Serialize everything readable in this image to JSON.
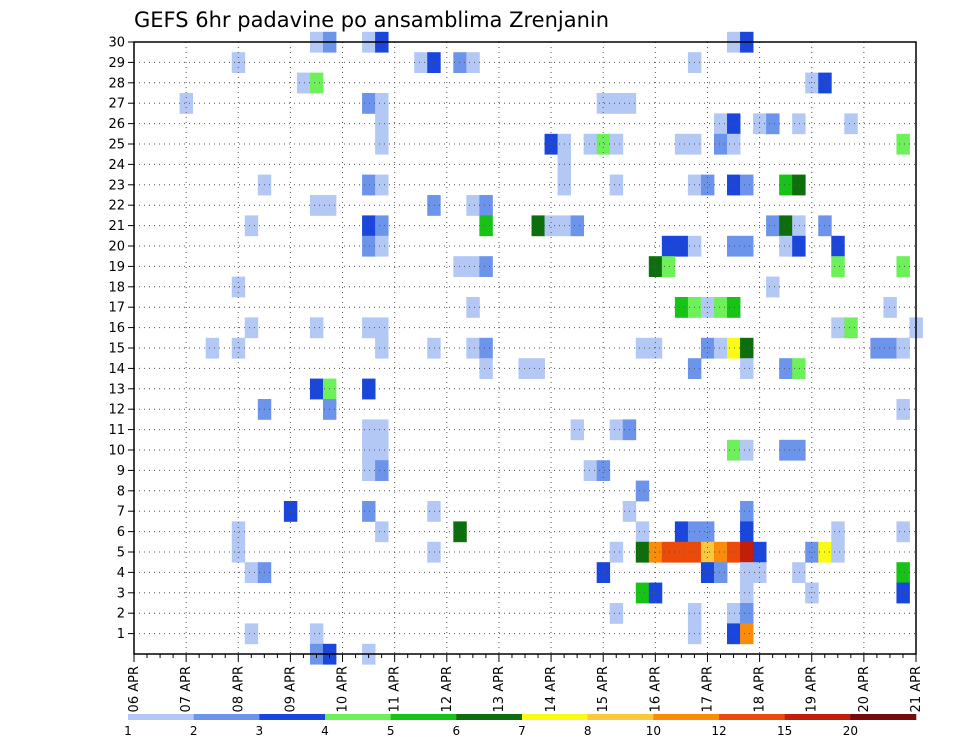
{
  "chart_data": {
    "type": "heatmap",
    "title": "GEFS 6hr padavine po ansamblima Zrenjanin",
    "x_tick_labels": [
      "06 APR",
      "07 APR",
      "08 APR",
      "09 APR",
      "10 APR",
      "11 APR",
      "12 APR",
      "13 APR",
      "14 APR",
      "15 APR",
      "16 APR",
      "17 APR",
      "18 APR",
      "19 APR",
      "20 APR",
      "21 APR"
    ],
    "y_tick_labels": [
      "1",
      "2",
      "3",
      "4",
      "5",
      "6",
      "7",
      "8",
      "9",
      "10",
      "11",
      "12",
      "13",
      "14",
      "15",
      "16",
      "17",
      "18",
      "19",
      "20",
      "21",
      "22",
      "23",
      "24",
      "25",
      "26",
      "27",
      "28",
      "29",
      "30"
    ],
    "x_range_steps": [
      0,
      60
    ],
    "y_range_members": [
      0,
      30
    ],
    "grid": "dotted",
    "colorbar": {
      "tick_labels": [
        "1",
        "2",
        "3",
        "4",
        "5",
        "6",
        "7",
        "8",
        "10",
        "12",
        "15",
        "20"
      ],
      "colors": [
        "#b4c8f5",
        "#6c94eb",
        "#1a46dc",
        "#6ef05a",
        "#16c316",
        "#0c6e0c",
        "#fafa14",
        "#fac83c",
        "#fa8c0a",
        "#eb4b0a",
        "#c31e0a",
        "#780a0a"
      ]
    },
    "cells": [
      [
        14,
        30,
        1
      ],
      [
        15,
        30,
        2
      ],
      [
        18,
        30,
        1
      ],
      [
        19,
        30,
        3
      ],
      [
        46,
        30,
        1
      ],
      [
        47,
        30,
        3
      ],
      [
        8,
        29,
        1
      ],
      [
        22,
        29,
        1
      ],
      [
        23,
        29,
        3
      ],
      [
        25,
        29,
        2
      ],
      [
        26,
        29,
        1
      ],
      [
        43,
        29,
        1
      ],
      [
        13,
        28,
        1
      ],
      [
        14,
        28,
        4
      ],
      [
        52,
        28,
        1
      ],
      [
        53,
        28,
        3
      ],
      [
        4,
        27,
        1
      ],
      [
        18,
        27,
        2
      ],
      [
        19,
        27,
        1
      ],
      [
        36,
        27,
        1
      ],
      [
        37,
        27,
        1
      ],
      [
        38,
        27,
        1
      ],
      [
        19,
        26,
        1
      ],
      [
        45,
        26,
        1
      ],
      [
        46,
        26,
        3
      ],
      [
        48,
        26,
        1
      ],
      [
        49,
        26,
        2
      ],
      [
        51,
        26,
        1
      ],
      [
        55,
        26,
        1
      ],
      [
        19,
        25,
        1
      ],
      [
        32,
        25,
        3
      ],
      [
        33,
        25,
        1
      ],
      [
        35,
        25,
        1
      ],
      [
        36,
        25,
        4
      ],
      [
        37,
        25,
        1
      ],
      [
        42,
        25,
        1
      ],
      [
        43,
        25,
        1
      ],
      [
        45,
        25,
        2
      ],
      [
        46,
        25,
        1
      ],
      [
        59,
        25,
        4
      ],
      [
        33,
        24,
        1
      ],
      [
        10,
        23,
        1
      ],
      [
        18,
        23,
        2
      ],
      [
        19,
        23,
        1
      ],
      [
        33,
        23,
        1
      ],
      [
        37,
        23,
        1
      ],
      [
        43,
        23,
        1
      ],
      [
        44,
        23,
        2
      ],
      [
        46,
        23,
        3
      ],
      [
        47,
        23,
        2
      ],
      [
        50,
        23,
        5
      ],
      [
        51,
        23,
        6
      ],
      [
        14,
        22,
        1
      ],
      [
        15,
        22,
        1
      ],
      [
        23,
        22,
        2
      ],
      [
        26,
        22,
        1
      ],
      [
        27,
        22,
        2
      ],
      [
        9,
        21,
        1
      ],
      [
        18,
        21,
        3
      ],
      [
        19,
        21,
        2
      ],
      [
        27,
        21,
        5
      ],
      [
        31,
        21,
        6
      ],
      [
        32,
        21,
        1
      ],
      [
        33,
        21,
        1
      ],
      [
        34,
        21,
        2
      ],
      [
        49,
        21,
        2
      ],
      [
        50,
        21,
        6
      ],
      [
        51,
        21,
        1
      ],
      [
        53,
        21,
        2
      ],
      [
        18,
        20,
        2
      ],
      [
        19,
        20,
        1
      ],
      [
        41,
        20,
        3
      ],
      [
        42,
        20,
        3
      ],
      [
        43,
        20,
        1
      ],
      [
        46,
        20,
        2
      ],
      [
        47,
        20,
        2
      ],
      [
        50,
        20,
        1
      ],
      [
        51,
        20,
        3
      ],
      [
        54,
        20,
        3
      ],
      [
        25,
        19,
        1
      ],
      [
        26,
        19,
        1
      ],
      [
        27,
        19,
        2
      ],
      [
        40,
        19,
        6
      ],
      [
        41,
        19,
        4
      ],
      [
        54,
        19,
        4
      ],
      [
        59,
        19,
        4
      ],
      [
        8,
        18,
        1
      ],
      [
        49,
        18,
        1
      ],
      [
        26,
        17,
        1
      ],
      [
        42,
        17,
        5
      ],
      [
        43,
        17,
        4
      ],
      [
        44,
        17,
        1
      ],
      [
        45,
        17,
        4
      ],
      [
        46,
        17,
        5
      ],
      [
        58,
        17,
        1
      ],
      [
        9,
        16,
        1
      ],
      [
        14,
        16,
        1
      ],
      [
        18,
        16,
        1
      ],
      [
        19,
        16,
        1
      ],
      [
        54,
        16,
        1
      ],
      [
        55,
        16,
        4
      ],
      [
        60,
        16,
        1
      ],
      [
        6,
        15,
        1
      ],
      [
        8,
        15,
        1
      ],
      [
        19,
        15,
        1
      ],
      [
        23,
        15,
        1
      ],
      [
        26,
        15,
        1
      ],
      [
        27,
        15,
        2
      ],
      [
        39,
        15,
        1
      ],
      [
        40,
        15,
        1
      ],
      [
        44,
        15,
        2
      ],
      [
        45,
        15,
        1
      ],
      [
        46,
        15,
        7
      ],
      [
        47,
        15,
        6
      ],
      [
        57,
        15,
        2
      ],
      [
        58,
        15,
        2
      ],
      [
        59,
        15,
        1
      ],
      [
        27,
        14,
        1
      ],
      [
        30,
        14,
        1
      ],
      [
        31,
        14,
        1
      ],
      [
        43,
        14,
        2
      ],
      [
        47,
        14,
        1
      ],
      [
        50,
        14,
        2
      ],
      [
        51,
        14,
        4
      ],
      [
        14,
        13,
        3
      ],
      [
        15,
        13,
        4
      ],
      [
        18,
        13,
        3
      ],
      [
        10,
        12,
        2
      ],
      [
        15,
        12,
        2
      ],
      [
        59,
        12,
        1
      ],
      [
        18,
        11,
        1
      ],
      [
        19,
        11,
        1
      ],
      [
        34,
        11,
        1
      ],
      [
        37,
        11,
        1
      ],
      [
        38,
        11,
        2
      ],
      [
        18,
        10,
        1
      ],
      [
        19,
        10,
        1
      ],
      [
        46,
        10,
        4
      ],
      [
        47,
        10,
        1
      ],
      [
        50,
        10,
        2
      ],
      [
        51,
        10,
        2
      ],
      [
        18,
        9,
        1
      ],
      [
        19,
        9,
        2
      ],
      [
        35,
        9,
        1
      ],
      [
        36,
        9,
        2
      ],
      [
        39,
        8,
        2
      ],
      [
        12,
        7,
        3
      ],
      [
        18,
        7,
        2
      ],
      [
        23,
        7,
        1
      ],
      [
        38,
        7,
        1
      ],
      [
        47,
        7,
        2
      ],
      [
        8,
        6,
        1
      ],
      [
        19,
        6,
        1
      ],
      [
        25,
        6,
        6
      ],
      [
        39,
        6,
        1
      ],
      [
        42,
        6,
        3
      ],
      [
        43,
        6,
        2
      ],
      [
        44,
        6,
        2
      ],
      [
        47,
        6,
        3
      ],
      [
        54,
        6,
        1
      ],
      [
        59,
        6,
        1
      ],
      [
        8,
        5,
        1
      ],
      [
        23,
        5,
        1
      ],
      [
        37,
        5,
        1
      ],
      [
        39,
        5,
        6
      ],
      [
        40,
        5,
        9
      ],
      [
        41,
        5,
        10
      ],
      [
        42,
        5,
        10
      ],
      [
        43,
        5,
        10
      ],
      [
        44,
        5,
        8
      ],
      [
        45,
        5,
        9
      ],
      [
        46,
        5,
        10
      ],
      [
        47,
        5,
        11
      ],
      [
        48,
        5,
        3
      ],
      [
        52,
        5,
        2
      ],
      [
        53,
        5,
        7
      ],
      [
        54,
        5,
        1
      ],
      [
        9,
        4,
        1
      ],
      [
        10,
        4,
        2
      ],
      [
        36,
        4,
        3
      ],
      [
        44,
        4,
        3
      ],
      [
        45,
        4,
        2
      ],
      [
        47,
        4,
        1
      ],
      [
        48,
        4,
        1
      ],
      [
        51,
        4,
        1
      ],
      [
        59,
        4,
        5
      ],
      [
        39,
        3,
        5
      ],
      [
        40,
        3,
        3
      ],
      [
        47,
        3,
        1
      ],
      [
        52,
        3,
        1
      ],
      [
        59,
        3,
        3
      ],
      [
        37,
        2,
        1
      ],
      [
        43,
        2,
        1
      ],
      [
        46,
        2,
        1
      ],
      [
        47,
        2,
        2
      ],
      [
        9,
        1,
        1
      ],
      [
        14,
        1,
        1
      ],
      [
        43,
        1,
        1
      ],
      [
        46,
        1,
        3
      ],
      [
        47,
        1,
        9
      ],
      [
        14,
        0,
        2
      ],
      [
        15,
        0,
        3
      ],
      [
        18,
        0,
        1
      ]
    ]
  }
}
